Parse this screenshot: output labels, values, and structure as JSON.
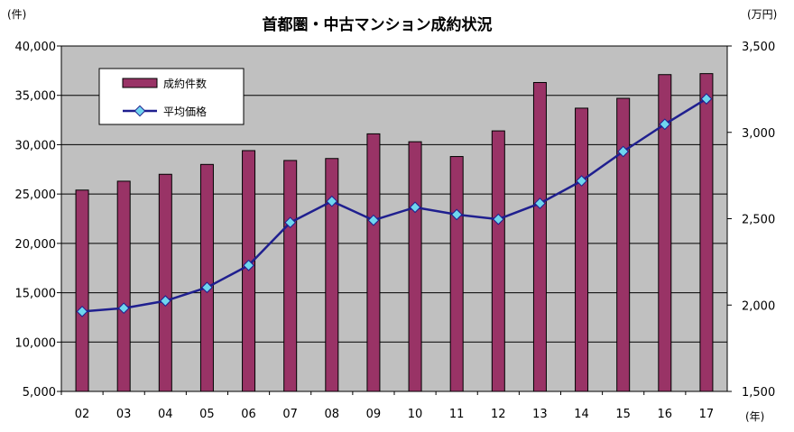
{
  "chart_data": {
    "type": "bar",
    "title": "首都圏・中古マンション成約状況",
    "categories": [
      "02",
      "03",
      "04",
      "05",
      "06",
      "07",
      "08",
      "09",
      "10",
      "11",
      "12",
      "13",
      "14",
      "15",
      "16",
      "17"
    ],
    "series": [
      {
        "name": "成約件数",
        "type": "bar",
        "axis": "left",
        "values": [
          25400,
          26300,
          27000,
          28000,
          29400,
          28400,
          28600,
          31100,
          30300,
          28800,
          31400,
          36300,
          33700,
          34700,
          37100,
          37200
        ]
      },
      {
        "name": "平均価格",
        "type": "line",
        "axis": "right",
        "values": [
          1963,
          1982,
          2024,
          2102,
          2230,
          2478,
          2601,
          2491,
          2566,
          2524,
          2497,
          2589,
          2719,
          2889,
          3047,
          3194
        ]
      }
    ],
    "ylim_left": [
      5000,
      40000
    ],
    "ylim_right": [
      1500,
      3500
    ],
    "yticks_left": [
      "5,000",
      "10,000",
      "15,000",
      "20,000",
      "25,000",
      "30,000",
      "35,000",
      "40,000"
    ],
    "yticks_right": [
      "1,500",
      "2,000",
      "2,500",
      "3,000",
      "3,500"
    ],
    "ylabel_left": "(件)",
    "ylabel_right": "(万円)",
    "xlabel": "(年)",
    "grid": true,
    "legend_position": "top-left",
    "colors": {
      "bar": "#993366",
      "line": "#1f1f8f",
      "marker": "#6fd6ef",
      "plot_bg": "#c0c0c0"
    }
  }
}
